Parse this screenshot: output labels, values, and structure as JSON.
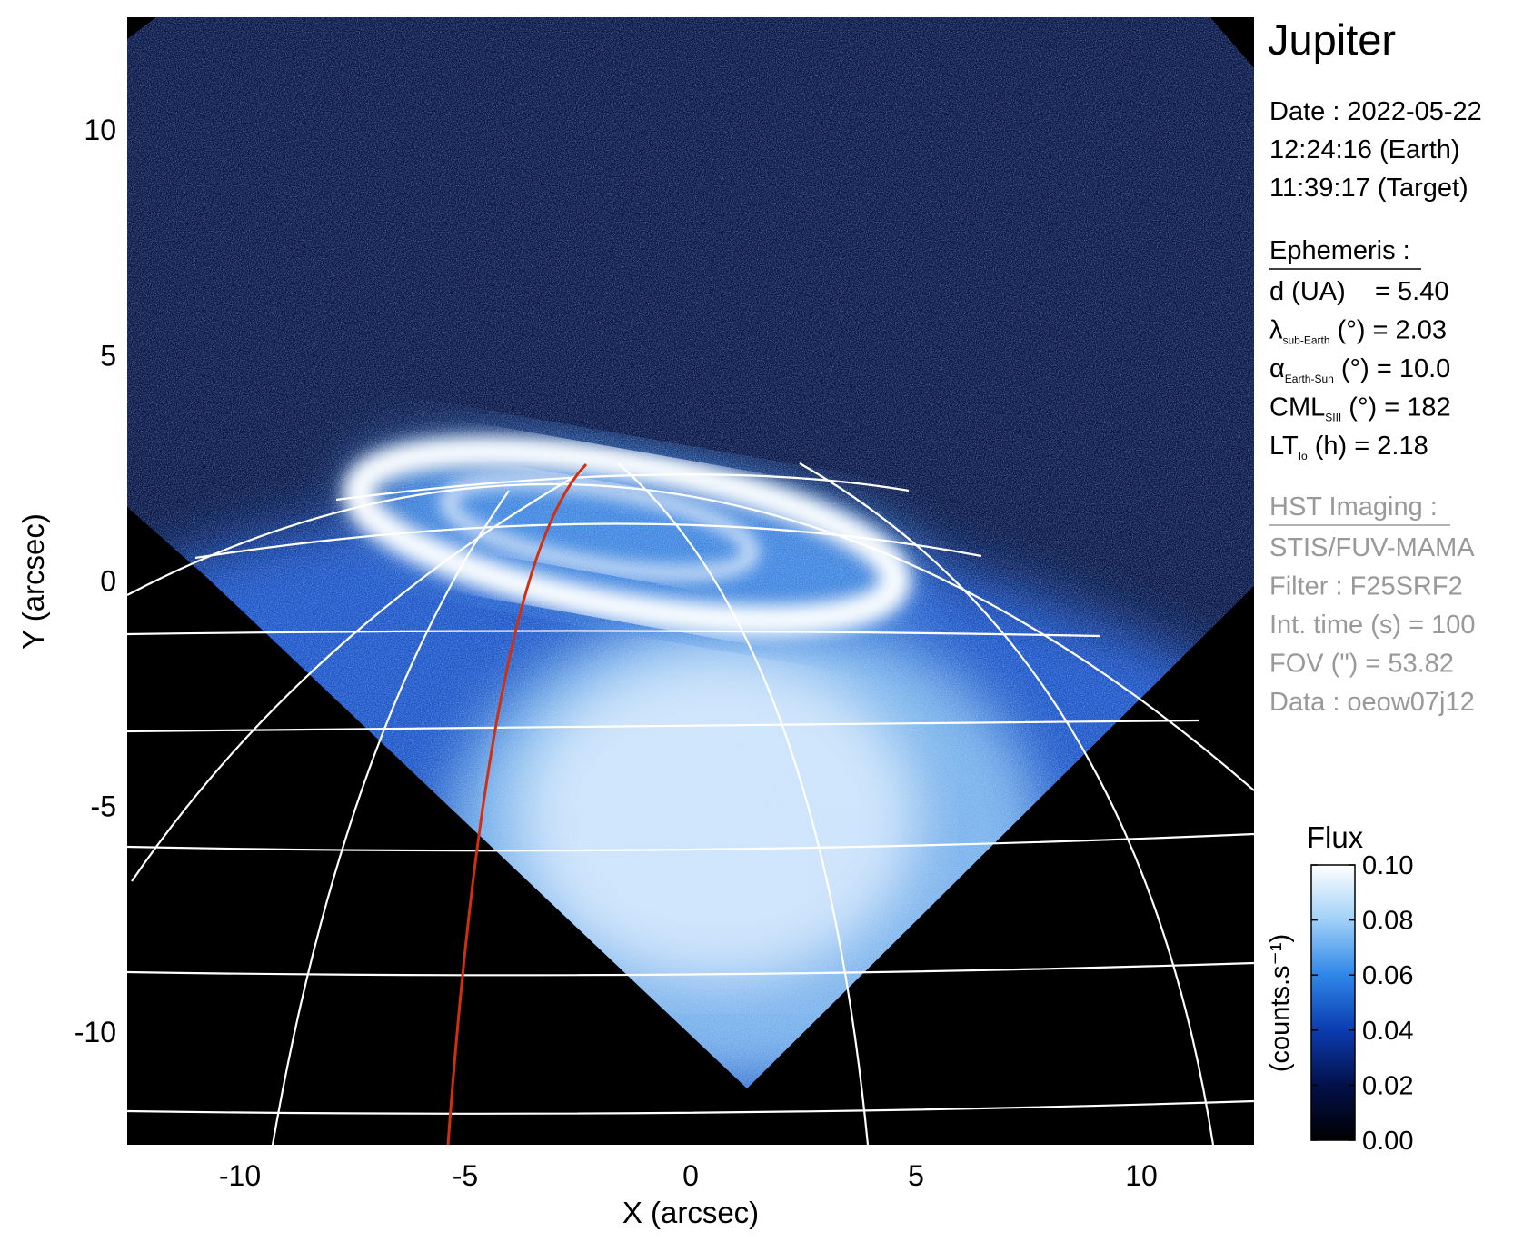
{
  "chart_data": {
    "type": "image",
    "xlabel": "X (arcsec)",
    "ylabel": "Y (arcsec)",
    "xlim": [
      -12.5,
      12.5
    ],
    "ylim": [
      -12.5,
      12.5
    ],
    "xticks": [
      -10,
      -5,
      0,
      5,
      10
    ],
    "yticks": [
      -10,
      -5,
      0,
      5,
      10
    ],
    "colorbar": {
      "title": "Flux",
      "label": "(counts.s⁻¹)",
      "lim": [
        0,
        0.1
      ],
      "ticks": [
        {
          "value": 0,
          "label": "0.00"
        },
        0.02,
        0.04,
        0.06,
        0.08,
        {
          "value": 0.1,
          "label": "0.10"
        }
      ],
      "colors": [
        "#000000",
        "#03104a",
        "#0b3cb0",
        "#2f86e8",
        "#9fd0f7",
        "#ffffff"
      ]
    }
  },
  "panel": {
    "title": "Jupiter",
    "date": [
      "Date : 2022-05-22",
      "12:24:16 (Earth)",
      "11:39:17 (Target)"
    ],
    "ephemeris": {
      "heading": "Ephemeris :",
      "lines": [
        {
          "symbol": "d (UA)    = 5.40"
        },
        {
          "symbol": "λ",
          "sub": "sub-Earth",
          "rest": " (°) = 2.03"
        },
        {
          "symbol": "α",
          "sub": "Earth-Sun",
          "rest": " (°) = 10.0"
        },
        {
          "symbol": "CML",
          "sub": "SIII",
          "rest": " (°) = 182"
        },
        {
          "symbol": "LT",
          "sub": "Io",
          "rest": " (h) = 2.18"
        }
      ]
    },
    "imaging": {
      "heading": "HST Imaging :",
      "lines": [
        "STIS/FUV-MAMA",
        "Filter : F25SRF2",
        "Int. time (s) = 100",
        "FOV (\") = 53.82",
        "Data : oeow07j12"
      ]
    }
  }
}
